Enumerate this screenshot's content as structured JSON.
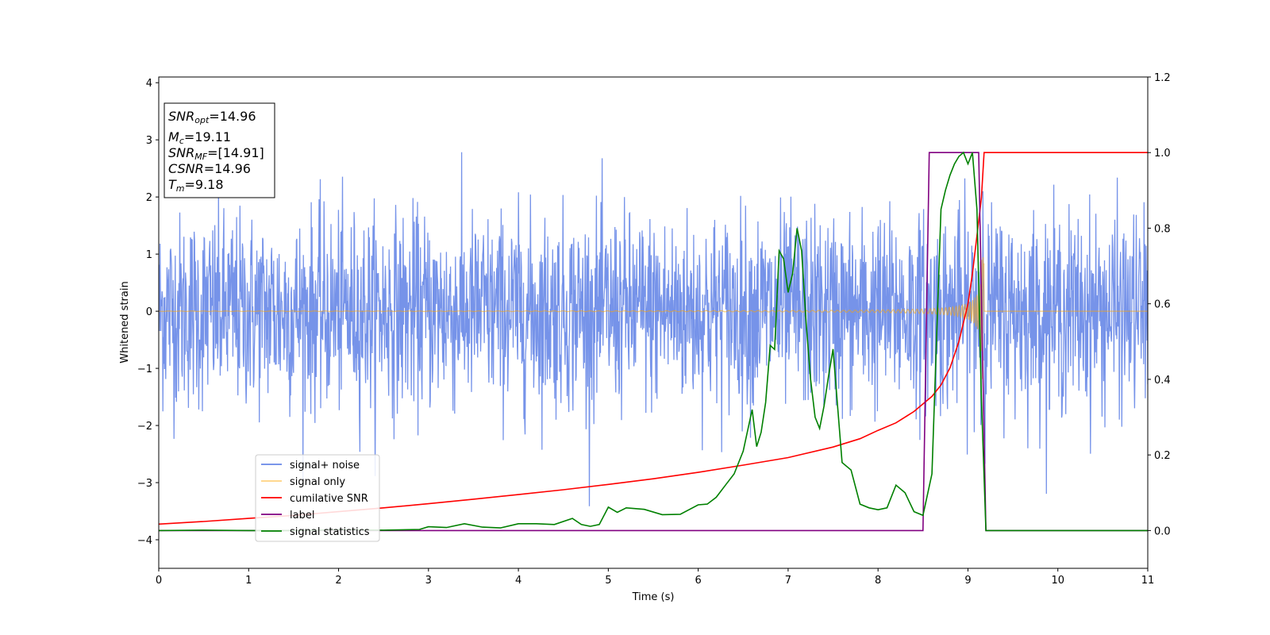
{
  "chart_data": {
    "type": "line",
    "xlabel": "Time (s)",
    "ylabel": "Whitened strain",
    "xlim": [
      0,
      11
    ],
    "ylim_left": [
      -4.5,
      4.1
    ],
    "ylim_right": [
      -0.1,
      1.2
    ],
    "x_ticks": [
      "0",
      "1",
      "2",
      "3",
      "4",
      "5",
      "6",
      "7",
      "8",
      "9",
      "10",
      "11"
    ],
    "y_left_ticks": [
      "−4",
      "−3",
      "−2",
      "−1",
      "0",
      "1",
      "2",
      "3",
      "4"
    ],
    "y_right_ticks": [
      "0.0",
      "0.2",
      "0.4",
      "0.6",
      "0.8",
      "1.0",
      "1.2"
    ],
    "info_box": {
      "snr_opt": "=14.96",
      "mc": "=19.11",
      "snr_mf": "=[14.91]",
      "csnr": "=14.96",
      "tm": "=9.18"
    },
    "legend_position": "lower-left",
    "series": [
      {
        "name": "signal+ noise",
        "axis": "left",
        "color": "#4169e1",
        "style": "noisy strain, amplitude approx. ±1.5 with spikes to ±3.7",
        "x_range": [
          0,
          11
        ]
      },
      {
        "name": "signal only",
        "axis": "left",
        "color": "#ffa500",
        "style": "chirp, amplitude grows to ~1.3 before merger",
        "x_range": [
          0,
          11
        ],
        "merger_time": 9.18
      },
      {
        "name": "cumilative SNR",
        "axis": "right",
        "color": "#ff0000",
        "x": [
          0,
          0.5,
          1,
          1.5,
          2,
          2.5,
          3,
          3.5,
          4,
          4.5,
          5,
          5.5,
          6,
          6.5,
          7,
          7.5,
          7.8,
          8,
          8.2,
          8.4,
          8.5,
          8.6,
          8.7,
          8.8,
          8.9,
          9,
          9.05,
          9.1,
          9.15,
          9.18,
          11
        ],
        "y": [
          0.017,
          0.024,
          0.032,
          0.04,
          0.05,
          0.06,
          0.071,
          0.083,
          0.095,
          0.108,
          0.122,
          0.137,
          0.154,
          0.173,
          0.193,
          0.221,
          0.243,
          0.265,
          0.285,
          0.315,
          0.335,
          0.355,
          0.385,
          0.43,
          0.5,
          0.6,
          0.68,
          0.78,
          0.88,
          1.0,
          1.0
        ]
      },
      {
        "name": "label",
        "axis": "right",
        "color": "#800080",
        "x": [
          0,
          8.5,
          8.57,
          9.12,
          9.2,
          11
        ],
        "y": [
          0,
          0,
          1,
          1,
          0,
          0
        ]
      },
      {
        "name": "signal statistics",
        "axis": "right",
        "color": "#008000",
        "x": [
          0,
          0.5,
          1,
          1.5,
          2,
          2.5,
          2.9,
          3.0,
          3.2,
          3.4,
          3.6,
          3.8,
          4.0,
          4.2,
          4.4,
          4.6,
          4.7,
          4.8,
          4.9,
          5.0,
          5.1,
          5.2,
          5.4,
          5.6,
          5.8,
          6.0,
          6.1,
          6.2,
          6.3,
          6.4,
          6.5,
          6.6,
          6.65,
          6.7,
          6.75,
          6.8,
          6.85,
          6.9,
          6.95,
          7.0,
          7.05,
          7.1,
          7.15,
          7.2,
          7.25,
          7.3,
          7.35,
          7.4,
          7.45,
          7.5,
          7.55,
          7.6,
          7.7,
          7.8,
          7.9,
          8.0,
          8.1,
          8.2,
          8.3,
          8.4,
          8.5,
          8.6,
          8.65,
          8.7,
          8.75,
          8.8,
          8.85,
          8.9,
          8.95,
          9.0,
          9.05,
          9.1,
          9.15,
          9.2,
          9.25,
          11
        ],
        "y": [
          0.0,
          0.001,
          0.0,
          0.0,
          0.002,
          0.001,
          0.003,
          0.01,
          0.008,
          0.018,
          0.009,
          0.007,
          0.018,
          0.018,
          0.016,
          0.032,
          0.016,
          0.011,
          0.016,
          0.062,
          0.048,
          0.06,
          0.056,
          0.042,
          0.043,
          0.068,
          0.07,
          0.088,
          0.119,
          0.15,
          0.21,
          0.32,
          0.222,
          0.26,
          0.339,
          0.49,
          0.479,
          0.74,
          0.719,
          0.63,
          0.68,
          0.8,
          0.74,
          0.55,
          0.4,
          0.3,
          0.27,
          0.33,
          0.41,
          0.48,
          0.33,
          0.18,
          0.16,
          0.07,
          0.06,
          0.055,
          0.06,
          0.12,
          0.1,
          0.05,
          0.04,
          0.15,
          0.5,
          0.85,
          0.9,
          0.94,
          0.97,
          0.99,
          1.0,
          0.97,
          1.0,
          0.85,
          0.35,
          0.0,
          0.0,
          0.0
        ]
      }
    ]
  }
}
